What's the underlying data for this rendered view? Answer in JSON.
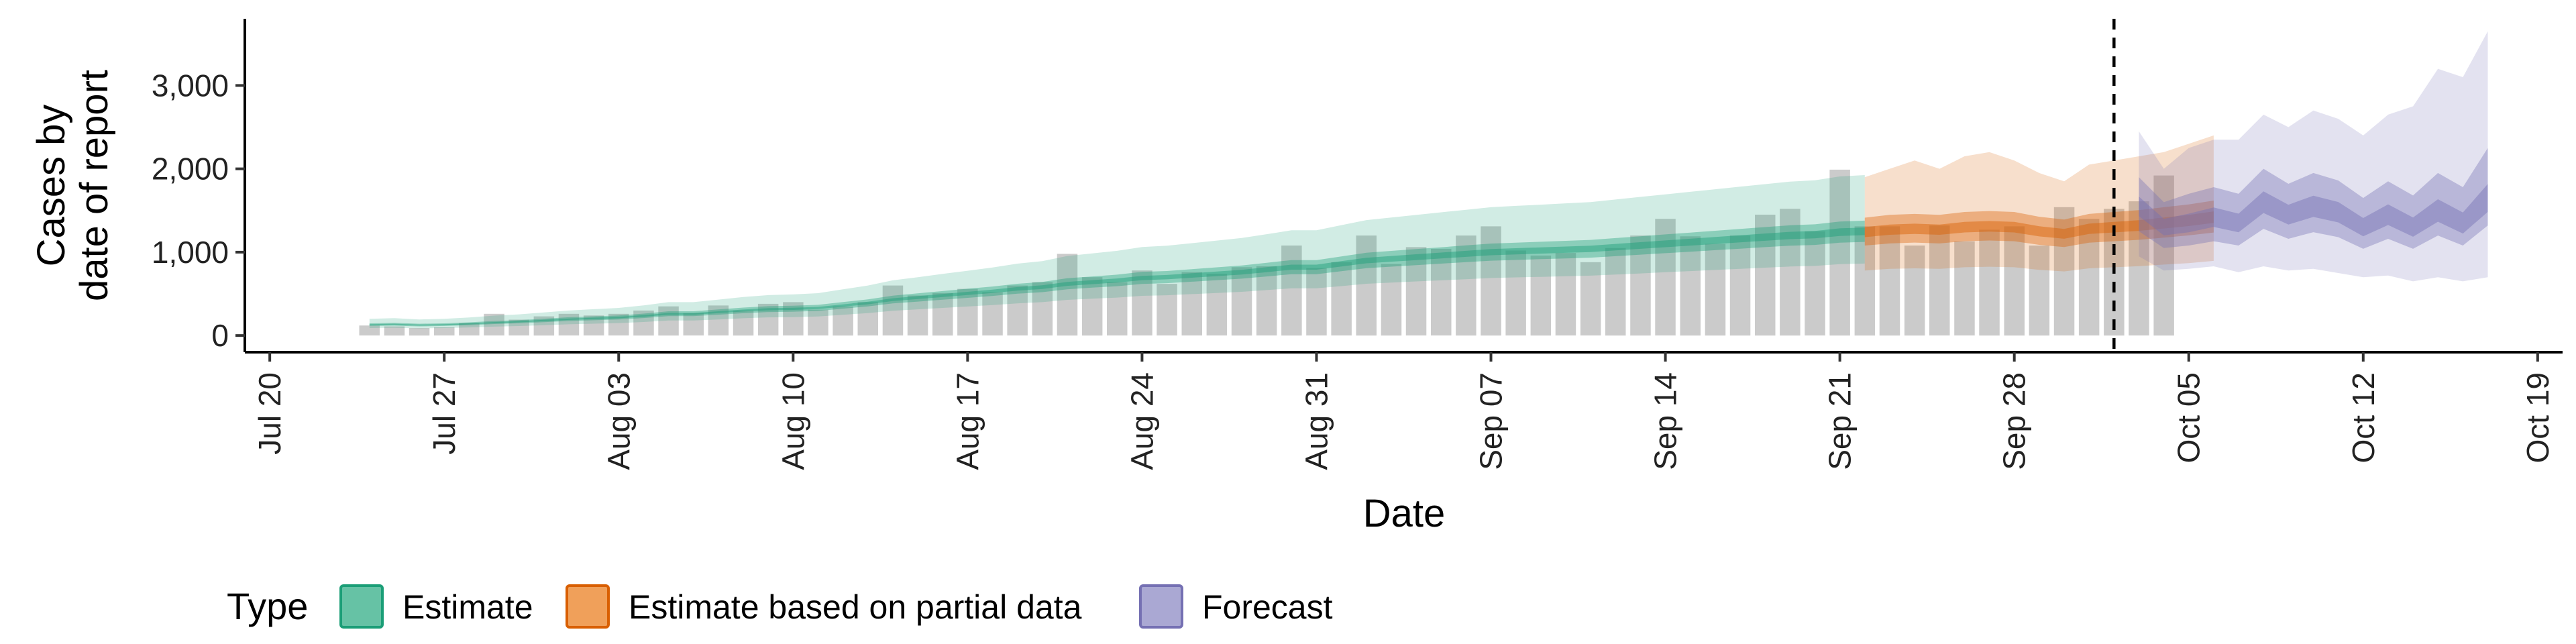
{
  "chart_data": {
    "type": "area",
    "xlabel": "Date",
    "ylabel_lines": [
      "Cases by",
      "date of report"
    ],
    "x_range": [
      "2020-07-19",
      "2020-10-20"
    ],
    "ylim": [
      -200,
      3800
    ],
    "y_ticks": [
      0,
      1000,
      2000,
      3000
    ],
    "y_tick_labels": [
      "0",
      "1,000",
      "2,000",
      "3,000"
    ],
    "x_ticks": [
      "2020-07-20",
      "2020-07-27",
      "2020-08-03",
      "2020-08-10",
      "2020-08-17",
      "2020-08-24",
      "2020-08-31",
      "2020-09-07",
      "2020-09-14",
      "2020-09-21",
      "2020-09-28",
      "2020-10-05",
      "2020-10-12",
      "2020-10-19"
    ],
    "x_tick_labels": [
      "Jul 20",
      "Jul 27",
      "Aug 03",
      "Aug 10",
      "Aug 17",
      "Aug 24",
      "Aug 31",
      "Sep 07",
      "Sep 14",
      "Sep 21",
      "Sep 28",
      "Oct 05",
      "Oct 12",
      "Oct 19"
    ],
    "vline_date": "2020-10-02",
    "grid": false,
    "legend": {
      "title": "Type",
      "position": "bottom",
      "entries": [
        {
          "label": "Estimate",
          "fill": "#66c2a5",
          "stroke": "#1b9e77"
        },
        {
          "label": "Estimate based on partial data",
          "fill": "#f0a05a",
          "stroke": "#d95f02"
        },
        {
          "label": "Forecast",
          "fill": "#aaa8d3",
          "stroke": "#7570b3"
        }
      ]
    },
    "bars": {
      "start_date": "2020-07-24",
      "color": "#bdbdbd",
      "values": [
        120,
        110,
        90,
        100,
        150,
        260,
        190,
        230,
        260,
        240,
        260,
        300,
        350,
        270,
        360,
        300,
        380,
        400,
        310,
        350,
        400,
        600,
        480,
        510,
        560,
        520,
        600,
        640,
        980,
        700,
        640,
        780,
        620,
        760,
        740,
        820,
        830,
        1080,
        810,
        880,
        1200,
        860,
        1060,
        1040,
        1200,
        1310,
        1020,
        960,
        990,
        880,
        1050,
        1200,
        1400,
        1190,
        1100,
        1200,
        1450,
        1520,
        1250,
        1990,
        1310,
        1310,
        1080,
        1320,
        1130,
        1270,
        1310,
        1080,
        1540,
        1400,
        1520,
        1610,
        1920
      ]
    },
    "series": [
      {
        "name": "Estimate",
        "color": "#1b9e77",
        "start_date": "2020-07-24",
        "median": [
          130,
          135,
          125,
          130,
          140,
          155,
          165,
          180,
          195,
          205,
          215,
          235,
          260,
          260,
          280,
          300,
          315,
          320,
          330,
          360,
          390,
          430,
          455,
          480,
          505,
          530,
          560,
          580,
          620,
          640,
          660,
          690,
          700,
          720,
          740,
          760,
          790,
          820,
          820,
          860,
          900,
          920,
          940,
          960,
          980,
          1000,
          1010,
          1020,
          1030,
          1040,
          1060,
          1080,
          1100,
          1120,
          1140,
          1160,
          1180,
          1200,
          1210,
          1240,
          1250
        ],
        "lower50": [
          115,
          118,
          110,
          115,
          124,
          138,
          147,
          160,
          174,
          183,
          192,
          210,
          232,
          232,
          250,
          268,
          281,
          286,
          295,
          322,
          349,
          385,
          407,
          430,
          452,
          475,
          502,
          520,
          555,
          574,
          592,
          619,
          628,
          646,
          664,
          682,
          709,
          736,
          736,
          772,
          808,
          826,
          844,
          862,
          880,
          898,
          907,
          916,
          925,
          934,
          952,
          970,
          988,
          1006,
          1024,
          1042,
          1060,
          1078,
          1087,
          1114,
          1123
        ],
        "upper50": [
          146,
          152,
          141,
          146,
          158,
          174,
          185,
          202,
          219,
          230,
          241,
          263,
          291,
          291,
          313,
          335,
          352,
          357,
          368,
          401,
          434,
          478,
          506,
          533,
          561,
          588,
          621,
          643,
          687,
          709,
          730,
          763,
          774,
          796,
          818,
          840,
          873,
          905,
          905,
          949,
          993,
          1015,
          1037,
          1059,
          1081,
          1103,
          1114,
          1125,
          1136,
          1147,
          1169,
          1191,
          1213,
          1235,
          1257,
          1279,
          1301,
          1323,
          1334,
          1367,
          1378
        ],
        "lower90": [
          90,
          93,
          86,
          90,
          97,
          107,
          114,
          124,
          135,
          142,
          149,
          162,
          180,
          180,
          193,
          207,
          218,
          221,
          228,
          249,
          269,
          297,
          314,
          331,
          348,
          366,
          386,
          400,
          428,
          442,
          455,
          476,
          483,
          497,
          511,
          524,
          545,
          566,
          566,
          593,
          621,
          635,
          649,
          662,
          676,
          690,
          697,
          704,
          711,
          718,
          731,
          745,
          759,
          773,
          787,
          800,
          814,
          828,
          835,
          856,
          863
        ],
        "upper90": [
          200,
          208,
          193,
          200,
          216,
          239,
          254,
          277,
          300,
          316,
          331,
          362,
          400,
          400,
          431,
          462,
          485,
          493,
          508,
          554,
          600,
          662,
          700,
          739,
          777,
          816,
          862,
          893,
          954,
          985,
          1016,
          1062,
          1078,
          1108,
          1139,
          1170,
          1216,
          1262,
          1262,
          1324,
          1385,
          1416,
          1447,
          1478,
          1509,
          1539,
          1555,
          1570,
          1586,
          1601,
          1632,
          1663,
          1693,
          1724,
          1755,
          1786,
          1816,
          1847,
          1863,
          1909,
          1925
        ]
      },
      {
        "name": "Estimate based on partial data",
        "color": "#d95f02",
        "start_date": "2020-09-22",
        "median": [
          1240,
          1270,
          1280,
          1270,
          1300,
          1310,
          1300,
          1250,
          1220,
          1280,
          1300,
          1320,
          1350,
          1380,
          1420
        ],
        "lower50": [
          1080,
          1105,
          1115,
          1105,
          1131,
          1140,
          1131,
          1088,
          1062,
          1114,
          1131,
          1148,
          1175,
          1201,
          1236
        ],
        "upper50": [
          1414,
          1448,
          1459,
          1448,
          1482,
          1493,
          1482,
          1425,
          1391,
          1459,
          1482,
          1505,
          1539,
          1573,
          1619
        ],
        "lower90": [
          780,
          800,
          806,
          800,
          819,
          825,
          819,
          788,
          769,
          806,
          819,
          832,
          851,
          869,
          895
        ],
        "upper90": [
          1900,
          2000,
          2100,
          2000,
          2150,
          2200,
          2100,
          1950,
          1850,
          2050,
          2100,
          2150,
          2200,
          2300,
          2400
        ]
      },
      {
        "name": "Forecast",
        "color": "#7570b3",
        "start_date": "2020-10-03",
        "median": [
          1550,
          1300,
          1350,
          1420,
          1350,
          1600,
          1450,
          1550,
          1480,
          1300,
          1450,
          1300,
          1500,
          1350,
          1650
        ],
        "lower50": [
          1250,
          1050,
          1080,
          1130,
          1080,
          1280,
          1160,
          1240,
          1180,
          1040,
          1160,
          1040,
          1200,
          1080,
          1320
        ],
        "upper50": [
          1900,
          1600,
          1700,
          1780,
          1700,
          2000,
          1820,
          1950,
          1860,
          1650,
          1850,
          1680,
          1950,
          1780,
          2250
        ],
        "lower90": [
          950,
          780,
          800,
          830,
          760,
          830,
          780,
          800,
          750,
          700,
          720,
          650,
          700,
          650,
          700
        ],
        "upper90": [
          2450,
          2000,
          2250,
          2350,
          2350,
          2650,
          2500,
          2700,
          2600,
          2400,
          2650,
          2750,
          3200,
          3100,
          3650
        ]
      }
    ]
  }
}
